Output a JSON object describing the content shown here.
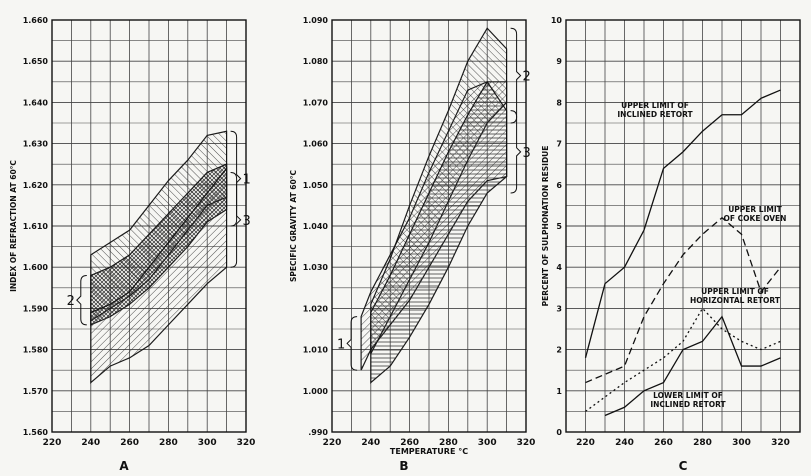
{
  "chart_data": [
    {
      "panel": "A",
      "type": "area",
      "xlabel": "",
      "ylabel": "INDEX OF REFRACTION AT 60°C",
      "xlim": [
        220,
        320
      ],
      "ylim": [
        1.56,
        1.66
      ],
      "x_ticks": [
        220,
        240,
        260,
        280,
        300,
        320
      ],
      "y_ticks": [
        1.56,
        1.57,
        1.58,
        1.59,
        1.6,
        1.61,
        1.62,
        1.63,
        1.64,
        1.65,
        1.66
      ],
      "y_tick_labels": [
        "1.560",
        "1.570",
        "1.580",
        "1.590",
        "1.600",
        "1.610",
        "1.620",
        "1.630",
        "1.640",
        "1.650",
        "1.660"
      ],
      "grid": true,
      "series": [
        {
          "name": "1",
          "x": [
            240,
            250,
            260,
            270,
            280,
            290,
            300,
            310
          ],
          "upper": [
            1.603,
            1.606,
            1.609,
            1.615,
            1.621,
            1.626,
            1.632,
            1.633
          ],
          "lower": [
            1.587,
            1.59,
            1.593,
            1.597,
            1.603,
            1.609,
            1.615,
            1.617
          ],
          "hatch": "diag-left"
        },
        {
          "name": "2",
          "x": [
            240,
            250,
            260,
            270,
            280,
            290,
            300,
            310
          ],
          "upper": [
            1.598,
            1.6,
            1.603,
            1.608,
            1.613,
            1.618,
            1.623,
            1.625
          ],
          "lower": [
            1.586,
            1.588,
            1.591,
            1.595,
            1.6,
            1.605,
            1.611,
            1.614
          ],
          "hatch": "cross"
        },
        {
          "name": "3",
          "x": [
            240,
            250,
            260,
            270,
            280,
            290,
            300,
            310
          ],
          "upper": [
            1.589,
            1.591,
            1.594,
            1.6,
            1.606,
            1.612,
            1.618,
            1.624
          ],
          "lower": [
            1.572,
            1.576,
            1.578,
            1.581,
            1.586,
            1.591,
            1.596,
            1.6
          ],
          "hatch": "diag-right"
        }
      ],
      "bracket_labels": [
        "1",
        "2",
        "3"
      ],
      "panel_label": "A"
    },
    {
      "panel": "B",
      "type": "area",
      "xlabel": "TEMPERATURE °C",
      "ylabel": "SPECIFIC GRAVITY AT 60°C",
      "xlim": [
        220,
        320
      ],
      "ylim": [
        0.99,
        1.09
      ],
      "x_ticks": [
        220,
        240,
        260,
        280,
        300,
        320
      ],
      "y_ticks": [
        0.99,
        1.0,
        1.01,
        1.02,
        1.03,
        1.04,
        1.05,
        1.06,
        1.07,
        1.08,
        1.09
      ],
      "y_tick_labels": [
        ".990",
        "1.000",
        "1.010",
        "1.020",
        "1.030",
        "1.040",
        "1.050",
        "1.060",
        "1.070",
        "1.080",
        "1.090"
      ],
      "grid": true,
      "series": [
        {
          "name": "1",
          "x": [
            235,
            240,
            250,
            260,
            270,
            280,
            290,
            300,
            310
          ],
          "upper": [
            1.018,
            1.024,
            1.033,
            1.042,
            1.053,
            1.063,
            1.073,
            1.075,
            1.075
          ],
          "lower": [
            1.005,
            1.01,
            1.016,
            1.022,
            1.03,
            1.038,
            1.046,
            1.051,
            1.052
          ],
          "hatch": "diag-right"
        },
        {
          "name": "2",
          "x": [
            240,
            250,
            260,
            270,
            280,
            290,
            300,
            310
          ],
          "upper": [
            1.021,
            1.032,
            1.045,
            1.057,
            1.068,
            1.08,
            1.088,
            1.083
          ],
          "lower": [
            1.009,
            1.018,
            1.027,
            1.036,
            1.046,
            1.056,
            1.065,
            1.07
          ],
          "hatch": "diag-left"
        },
        {
          "name": "3",
          "x": [
            240,
            250,
            260,
            270,
            280,
            290,
            300,
            310
          ],
          "upper": [
            1.019,
            1.028,
            1.038,
            1.048,
            1.058,
            1.067,
            1.075,
            1.068
          ],
          "lower": [
            1.002,
            1.006,
            1.013,
            1.021,
            1.03,
            1.04,
            1.048,
            1.052
          ],
          "hatch": "horizontal"
        }
      ],
      "bracket_labels": [
        "1",
        "2",
        "3"
      ],
      "panel_label": "B"
    },
    {
      "panel": "C",
      "type": "line",
      "xlabel": "",
      "ylabel": "PERCENT OF SULPHONATION RESIDUE",
      "xlim": [
        210,
        330
      ],
      "ylim": [
        0,
        10
      ],
      "x_ticks": [
        220,
        240,
        260,
        280,
        300,
        320
      ],
      "y_ticks": [
        0,
        1,
        2,
        3,
        4,
        5,
        6,
        7,
        8,
        9,
        10
      ],
      "grid": true,
      "series": [
        {
          "name": "UPPER LIMIT OF INCLINED RETORT",
          "style": "solid",
          "x": [
            220,
            230,
            240,
            250,
            260,
            270,
            280,
            290,
            300,
            310,
            320
          ],
          "values": [
            1.8,
            3.6,
            4.0,
            4.9,
            6.4,
            6.8,
            7.3,
            7.7,
            7.7,
            8.1,
            8.3
          ]
        },
        {
          "name": "UPPER LIMIT OF COKE OVEN",
          "style": "dashed",
          "x": [
            220,
            240,
            250,
            260,
            270,
            280,
            290,
            300,
            310,
            320
          ],
          "values": [
            1.2,
            1.6,
            2.8,
            3.6,
            4.3,
            4.8,
            5.2,
            4.8,
            3.4,
            4.0
          ]
        },
        {
          "name": "UPPER LIMIT OF HORIZONTAL RETORT",
          "style": "dotted",
          "x": [
            220,
            240,
            260,
            270,
            280,
            290,
            300,
            310,
            320
          ],
          "values": [
            0.5,
            1.2,
            1.8,
            2.2,
            3.0,
            2.5,
            2.2,
            2.0,
            2.2
          ]
        },
        {
          "name": "LOWER LIMIT OF INCLINED RETORT",
          "style": "solid",
          "x": [
            230,
            240,
            250,
            260,
            270,
            280,
            290,
            300,
            310,
            320
          ],
          "values": [
            0.4,
            0.6,
            1.0,
            1.2,
            2.0,
            2.2,
            2.8,
            1.6,
            1.6,
            1.8
          ]
        }
      ],
      "annotations": [
        {
          "lines": [
            "UPPER LIMIT OF",
            "INCLINED RETORT"
          ]
        },
        {
          "lines": [
            "UPPER LIMIT",
            "OF COKE OVEN"
          ]
        },
        {
          "lines": [
            "UPPER LIMIT OF",
            "HORIZONTAL RETORT"
          ]
        },
        {
          "lines": [
            "LOWER LIMIT OF",
            "INCLINED RETORT"
          ]
        }
      ],
      "panel_label": "C"
    }
  ]
}
